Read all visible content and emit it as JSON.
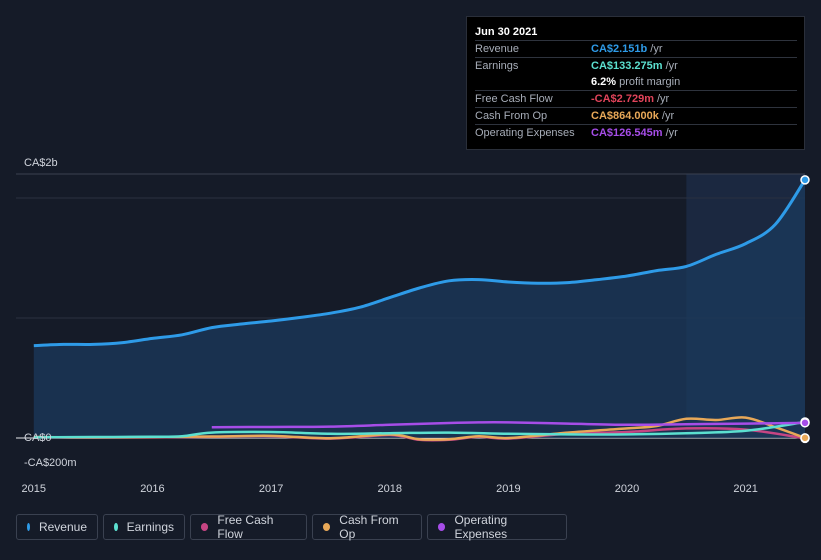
{
  "tooltip": {
    "date": "Jun 30 2021",
    "rows": [
      {
        "label": "Revenue",
        "value": "CA$2.151b",
        "unit": "/yr",
        "color": "#2e9be8"
      },
      {
        "label": "Earnings",
        "value": "CA$133.275m",
        "unit": "/yr",
        "color": "#5ce0d0"
      },
      {
        "label": "",
        "value": "6.2%",
        "unit": "profit margin",
        "color": "#ffffff"
      },
      {
        "label": "Free Cash Flow",
        "value": "-CA$2.729m",
        "unit": "/yr",
        "color": "#e0435a"
      },
      {
        "label": "Cash From Op",
        "value": "CA$864.000k",
        "unit": "/yr",
        "color": "#e8a858"
      },
      {
        "label": "Operating Expenses",
        "value": "CA$126.545m",
        "unit": "/yr",
        "color": "#a64de8"
      }
    ]
  },
  "legend": [
    {
      "label": "Revenue",
      "color": "#2e9be8"
    },
    {
      "label": "Earnings",
      "color": "#5ce0d0"
    },
    {
      "label": "Free Cash Flow",
      "color": "#c64583"
    },
    {
      "label": "Cash From Op",
      "color": "#e8a858"
    },
    {
      "label": "Operating Expenses",
      "color": "#a64de8"
    }
  ],
  "chart_data": {
    "type": "line",
    "y_tick_labels": [
      "CA$2b",
      "CA$0",
      "-CA$200m"
    ],
    "ylim": [
      -200,
      2200
    ],
    "xlim": [
      2014.85,
      2021.5
    ],
    "x_tick_labels": [
      "2015",
      "2016",
      "2017",
      "2018",
      "2019",
      "2020",
      "2021"
    ],
    "x_ticks": [
      2015,
      2016,
      2017,
      2018,
      2019,
      2020,
      2021
    ],
    "highlight_from": 2020.5,
    "series": [
      {
        "name": "Revenue",
        "color": "#2e9be8",
        "area": true,
        "x": [
          2015,
          2015.25,
          2015.5,
          2015.75,
          2016,
          2016.25,
          2016.5,
          2016.75,
          2017,
          2017.25,
          2017.5,
          2017.75,
          2018,
          2018.25,
          2018.5,
          2018.75,
          2019,
          2019.25,
          2019.5,
          2019.75,
          2020,
          2020.25,
          2020.5,
          2020.75,
          2021,
          2021.25,
          2021.5
        ],
        "y": [
          770,
          780,
          780,
          795,
          830,
          860,
          920,
          950,
          975,
          1005,
          1040,
          1090,
          1170,
          1250,
          1310,
          1320,
          1300,
          1290,
          1295,
          1320,
          1350,
          1395,
          1430,
          1530,
          1620,
          1780,
          2151
        ]
      },
      {
        "name": "Earnings",
        "color": "#5ce0d0",
        "x": [
          2015,
          2015.5,
          2016,
          2016.25,
          2016.5,
          2017,
          2017.5,
          2018,
          2018.5,
          2019,
          2019.5,
          2020,
          2020.5,
          2021,
          2021.5
        ],
        "y": [
          5,
          8,
          10,
          15,
          45,
          50,
          35,
          40,
          45,
          35,
          30,
          30,
          40,
          60,
          133
        ]
      },
      {
        "name": "Free Cash Flow",
        "color": "#c64583",
        "x": [
          2015,
          2015.5,
          2016,
          2016.5,
          2017,
          2017.5,
          2018,
          2018.25,
          2018.5,
          2018.75,
          2019,
          2019.5,
          2020,
          2020.5,
          2021,
          2021.5
        ],
        "y": [
          5,
          3,
          5,
          10,
          15,
          -5,
          25,
          -15,
          -15,
          10,
          -5,
          35,
          50,
          80,
          70,
          -3
        ]
      },
      {
        "name": "Cash From Op",
        "color": "#e8a858",
        "x": [
          2015,
          2015.5,
          2016,
          2016.5,
          2017,
          2017.5,
          2018,
          2018.25,
          2018.5,
          2018.75,
          2019,
          2019.5,
          2020,
          2020.25,
          2020.5,
          2020.75,
          2021,
          2021.25,
          2021.5
        ],
        "y": [
          8,
          5,
          8,
          12,
          18,
          -2,
          30,
          -10,
          -10,
          15,
          0,
          45,
          80,
          100,
          160,
          150,
          170,
          90,
          1
        ]
      },
      {
        "name": "Operating Expenses",
        "color": "#a64de8",
        "x": [
          2016.5,
          2017,
          2017.5,
          2018,
          2018.5,
          2018.75,
          2019,
          2019.5,
          2020,
          2020.5,
          2021,
          2021.5
        ],
        "y": [
          90,
          92,
          95,
          110,
          125,
          130,
          130,
          120,
          110,
          115,
          120,
          126.5
        ]
      }
    ]
  }
}
